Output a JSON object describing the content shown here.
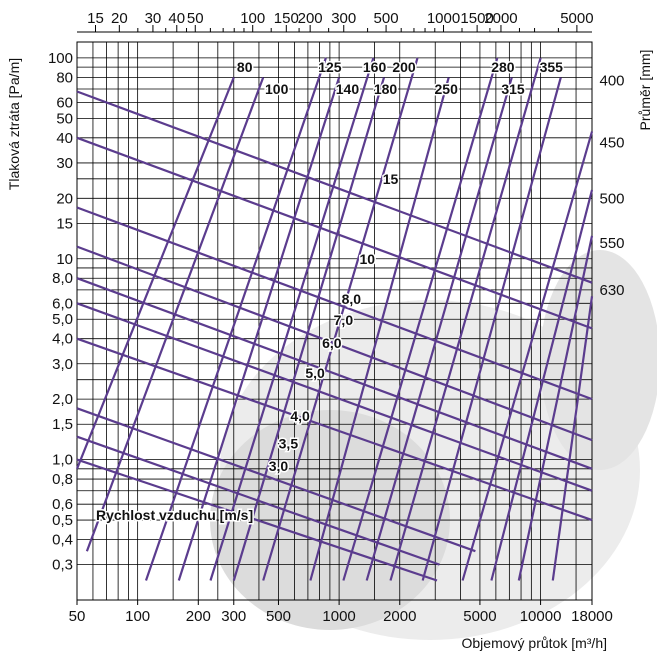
{
  "chart_data": {
    "type": "line",
    "title": "",
    "xlabel": "Objemový průtok [m³/h]",
    "ylabel": "Tlaková ztráta [Pa/m]",
    "y2label": "Průměr [mm]",
    "x_scale": "log",
    "y_scale": "log",
    "xlim": [
      50,
      18000
    ],
    "ylim": [
      0.2,
      120
    ],
    "grid": true,
    "bottom_ticks": [
      {
        "v": 50,
        "t": "50"
      },
      {
        "v": 100,
        "t": "100"
      },
      {
        "v": 200,
        "t": "200"
      },
      {
        "v": 300,
        "t": "300"
      },
      {
        "v": 500,
        "t": "500"
      },
      {
        "v": 1000,
        "t": "1000"
      },
      {
        "v": 2000,
        "t": "2000"
      },
      {
        "v": 5000,
        "t": "5000"
      },
      {
        "v": 10000,
        "t": "10000"
      },
      {
        "v": 18000,
        "t": "18000"
      }
    ],
    "top_ticks": [
      {
        "v": 15,
        "t": "15"
      },
      {
        "v": 20,
        "t": "20"
      },
      {
        "v": 30,
        "t": "30"
      },
      {
        "v": 40,
        "t": "40"
      },
      {
        "v": 50,
        "t": "50"
      },
      {
        "v": 100,
        "t": "100"
      },
      {
        "v": 150,
        "t": "150"
      },
      {
        "v": 200,
        "t": "200"
      },
      {
        "v": 300,
        "t": "300"
      },
      {
        "v": 500,
        "t": "500"
      },
      {
        "v": 1000,
        "t": "1000"
      },
      {
        "v": 1500,
        "t": "1500"
      },
      {
        "v": 2000,
        "t": "2000"
      },
      {
        "v": 5000,
        "t": "5000"
      }
    ],
    "top_minor_ticks": [
      25,
      35,
      45,
      60,
      70,
      80,
      90,
      125,
      175,
      250,
      400,
      600,
      700,
      800,
      900,
      1250,
      1750,
      2500,
      3000,
      4000
    ],
    "left_ticks": [
      {
        "v": 100,
        "t": "100"
      },
      {
        "v": 80,
        "t": "80"
      },
      {
        "v": 60,
        "t": "60"
      },
      {
        "v": 50,
        "t": "50"
      },
      {
        "v": 40,
        "t": "40"
      },
      {
        "v": 30,
        "t": "30"
      },
      {
        "v": 20,
        "t": "20"
      },
      {
        "v": 15,
        "t": "15"
      },
      {
        "v": 10,
        "t": "10"
      },
      {
        "v": 8,
        "t": "8,0"
      },
      {
        "v": 6,
        "t": "6,0"
      },
      {
        "v": 5,
        "t": "5,0"
      },
      {
        "v": 4,
        "t": "4,0"
      },
      {
        "v": 3,
        "t": "3,0"
      },
      {
        "v": 2,
        "t": "2,0"
      },
      {
        "v": 1.5,
        "t": "1,5"
      },
      {
        "v": 1,
        "t": "1,0"
      },
      {
        "v": 0.8,
        "t": "0,8"
      },
      {
        "v": 0.6,
        "t": "0,6"
      },
      {
        "v": 0.5,
        "t": "0,5"
      },
      {
        "v": 0.4,
        "t": "0,4"
      },
      {
        "v": 0.3,
        "t": "0,3"
      }
    ],
    "x_grid": [
      60,
      70,
      80,
      90,
      100,
      150,
      200,
      250,
      300,
      400,
      500,
      600,
      700,
      800,
      900,
      1000,
      1500,
      2000,
      3000,
      4000,
      5000,
      6000,
      7000,
      8000,
      9000,
      10000,
      15000
    ],
    "y_grid": [
      0.3,
      0.4,
      0.5,
      0.6,
      0.7,
      0.8,
      0.9,
      1,
      1.5,
      2,
      2.5,
      3,
      4,
      5,
      6,
      7,
      8,
      9,
      10,
      15,
      20,
      25,
      30,
      40,
      50,
      60,
      70,
      80,
      90,
      100
    ],
    "diameter_series": [
      {
        "name": "80",
        "x": [
          50,
          300
        ],
        "y": [
          0.9,
          80
        ]
      },
      {
        "name": "100",
        "x": [
          56,
          420
        ],
        "y": [
          0.35,
          80
        ]
      },
      {
        "name": "125",
        "x": [
          110,
          860
        ],
        "y": [
          0.25,
          100
        ]
      },
      {
        "name": "140",
        "x": [
          160,
          1000
        ],
        "y": [
          0.25,
          80
        ]
      },
      {
        "name": "160",
        "x": [
          230,
          1480
        ],
        "y": [
          0.25,
          100
        ]
      },
      {
        "name": "180",
        "x": [
          300,
          1670
        ],
        "y": [
          0.25,
          80
        ]
      },
      {
        "name": "200",
        "x": [
          420,
          2450
        ],
        "y": [
          0.25,
          100
        ]
      },
      {
        "name": "250",
        "x": [
          720,
          3500
        ],
        "y": [
          0.25,
          80
        ]
      },
      {
        "name": "280",
        "x": [
          1050,
          6100
        ],
        "y": [
          0.25,
          100
        ]
      },
      {
        "name": "315",
        "x": [
          1370,
          7200
        ],
        "y": [
          0.25,
          80
        ]
      },
      {
        "name": "355",
        "x": [
          1800,
          10000
        ],
        "y": [
          0.25,
          100
        ]
      },
      {
        "name": "400",
        "x": [
          2600,
          12600
        ],
        "y": [
          0.25,
          80
        ]
      },
      {
        "name": "450",
        "x": [
          4100,
          18000
        ],
        "y": [
          0.25,
          43
        ]
      },
      {
        "name": "500",
        "x": [
          5700,
          18000
        ],
        "y": [
          0.25,
          22
        ]
      },
      {
        "name": "550",
        "x": [
          7800,
          18000
        ],
        "y": [
          0.25,
          13
        ]
      },
      {
        "name": "630",
        "x": [
          11500,
          18000
        ],
        "y": [
          0.25,
          6.5
        ]
      }
    ],
    "velocity_series": [
      {
        "name": "3,0",
        "x": [
          50,
          3060
        ],
        "y": [
          1.0,
          0.25
        ]
      },
      {
        "name": "3,5",
        "x": [
          50,
          3150
        ],
        "y": [
          1.3,
          0.3
        ]
      },
      {
        "name": "4,0",
        "x": [
          50,
          4750
        ],
        "y": [
          1.8,
          0.35
        ]
      },
      {
        "name": "5,0",
        "x": [
          50,
          18000
        ],
        "y": [
          4.0,
          0.5
        ]
      },
      {
        "name": "6,0",
        "x": [
          50,
          18000
        ],
        "y": [
          6.0,
          0.7
        ]
      },
      {
        "name": "7,0",
        "x": [
          50,
          18000
        ],
        "y": [
          8.0,
          0.9
        ]
      },
      {
        "name": "8,0",
        "x": [
          50,
          18000
        ],
        "y": [
          11.5,
          1.25
        ]
      },
      {
        "name": "10",
        "x": [
          50,
          18000
        ],
        "y": [
          18.0,
          2.0
        ]
      },
      {
        "name": "15",
        "x": [
          50,
          18000
        ],
        "y": [
          40.0,
          4.5
        ]
      },
      {
        "name": "",
        "x": [
          50,
          18000
        ],
        "y": [
          68.0,
          7.6
        ]
      }
    ],
    "top_labels": [
      {
        "t": "80",
        "xv": 340,
        "yv": 90
      },
      {
        "t": "100",
        "xv": 490,
        "yv": 70
      },
      {
        "t": "125",
        "xv": 900,
        "yv": 90
      },
      {
        "t": "140",
        "xv": 1100,
        "yv": 70
      },
      {
        "t": "160",
        "xv": 1500,
        "yv": 90
      },
      {
        "t": "180",
        "xv": 1700,
        "yv": 70
      },
      {
        "t": "200",
        "xv": 2100,
        "yv": 90
      },
      {
        "t": "250",
        "xv": 3400,
        "yv": 70
      },
      {
        "t": "280",
        "xv": 6500,
        "yv": 90
      },
      {
        "t": "315",
        "xv": 7300,
        "yv": 70
      },
      {
        "t": "355",
        "xv": 11300,
        "yv": 90
      }
    ],
    "right_labels": [
      {
        "t": "400",
        "yv": 77
      },
      {
        "t": "450",
        "yv": 38
      },
      {
        "t": "500",
        "yv": 20
      },
      {
        "t": "550",
        "yv": 12
      },
      {
        "t": "630",
        "yv": 7
      }
    ],
    "velocity_labels": [
      {
        "t": "15",
        "xv": 1800,
        "yv": 25
      },
      {
        "t": "10",
        "xv": 1380,
        "yv": 10
      },
      {
        "t": "8,0",
        "xv": 1150,
        "yv": 6.3
      },
      {
        "t": "7,0",
        "xv": 1050,
        "yv": 4.95
      },
      {
        "t": "6,0",
        "xv": 920,
        "yv": 3.8
      },
      {
        "t": "5,0",
        "xv": 760,
        "yv": 2.7
      },
      {
        "t": "4,0",
        "xv": 640,
        "yv": 1.65
      },
      {
        "t": "3,5",
        "xv": 560,
        "yv": 1.2
      },
      {
        "t": "3,0",
        "xv": 500,
        "yv": 0.93
      }
    ],
    "annotation": "Rychlost vzduchu [m/s]",
    "colors": {
      "curves": "#5b3c8e",
      "grid": "#000000",
      "background": "#ffffff"
    }
  }
}
